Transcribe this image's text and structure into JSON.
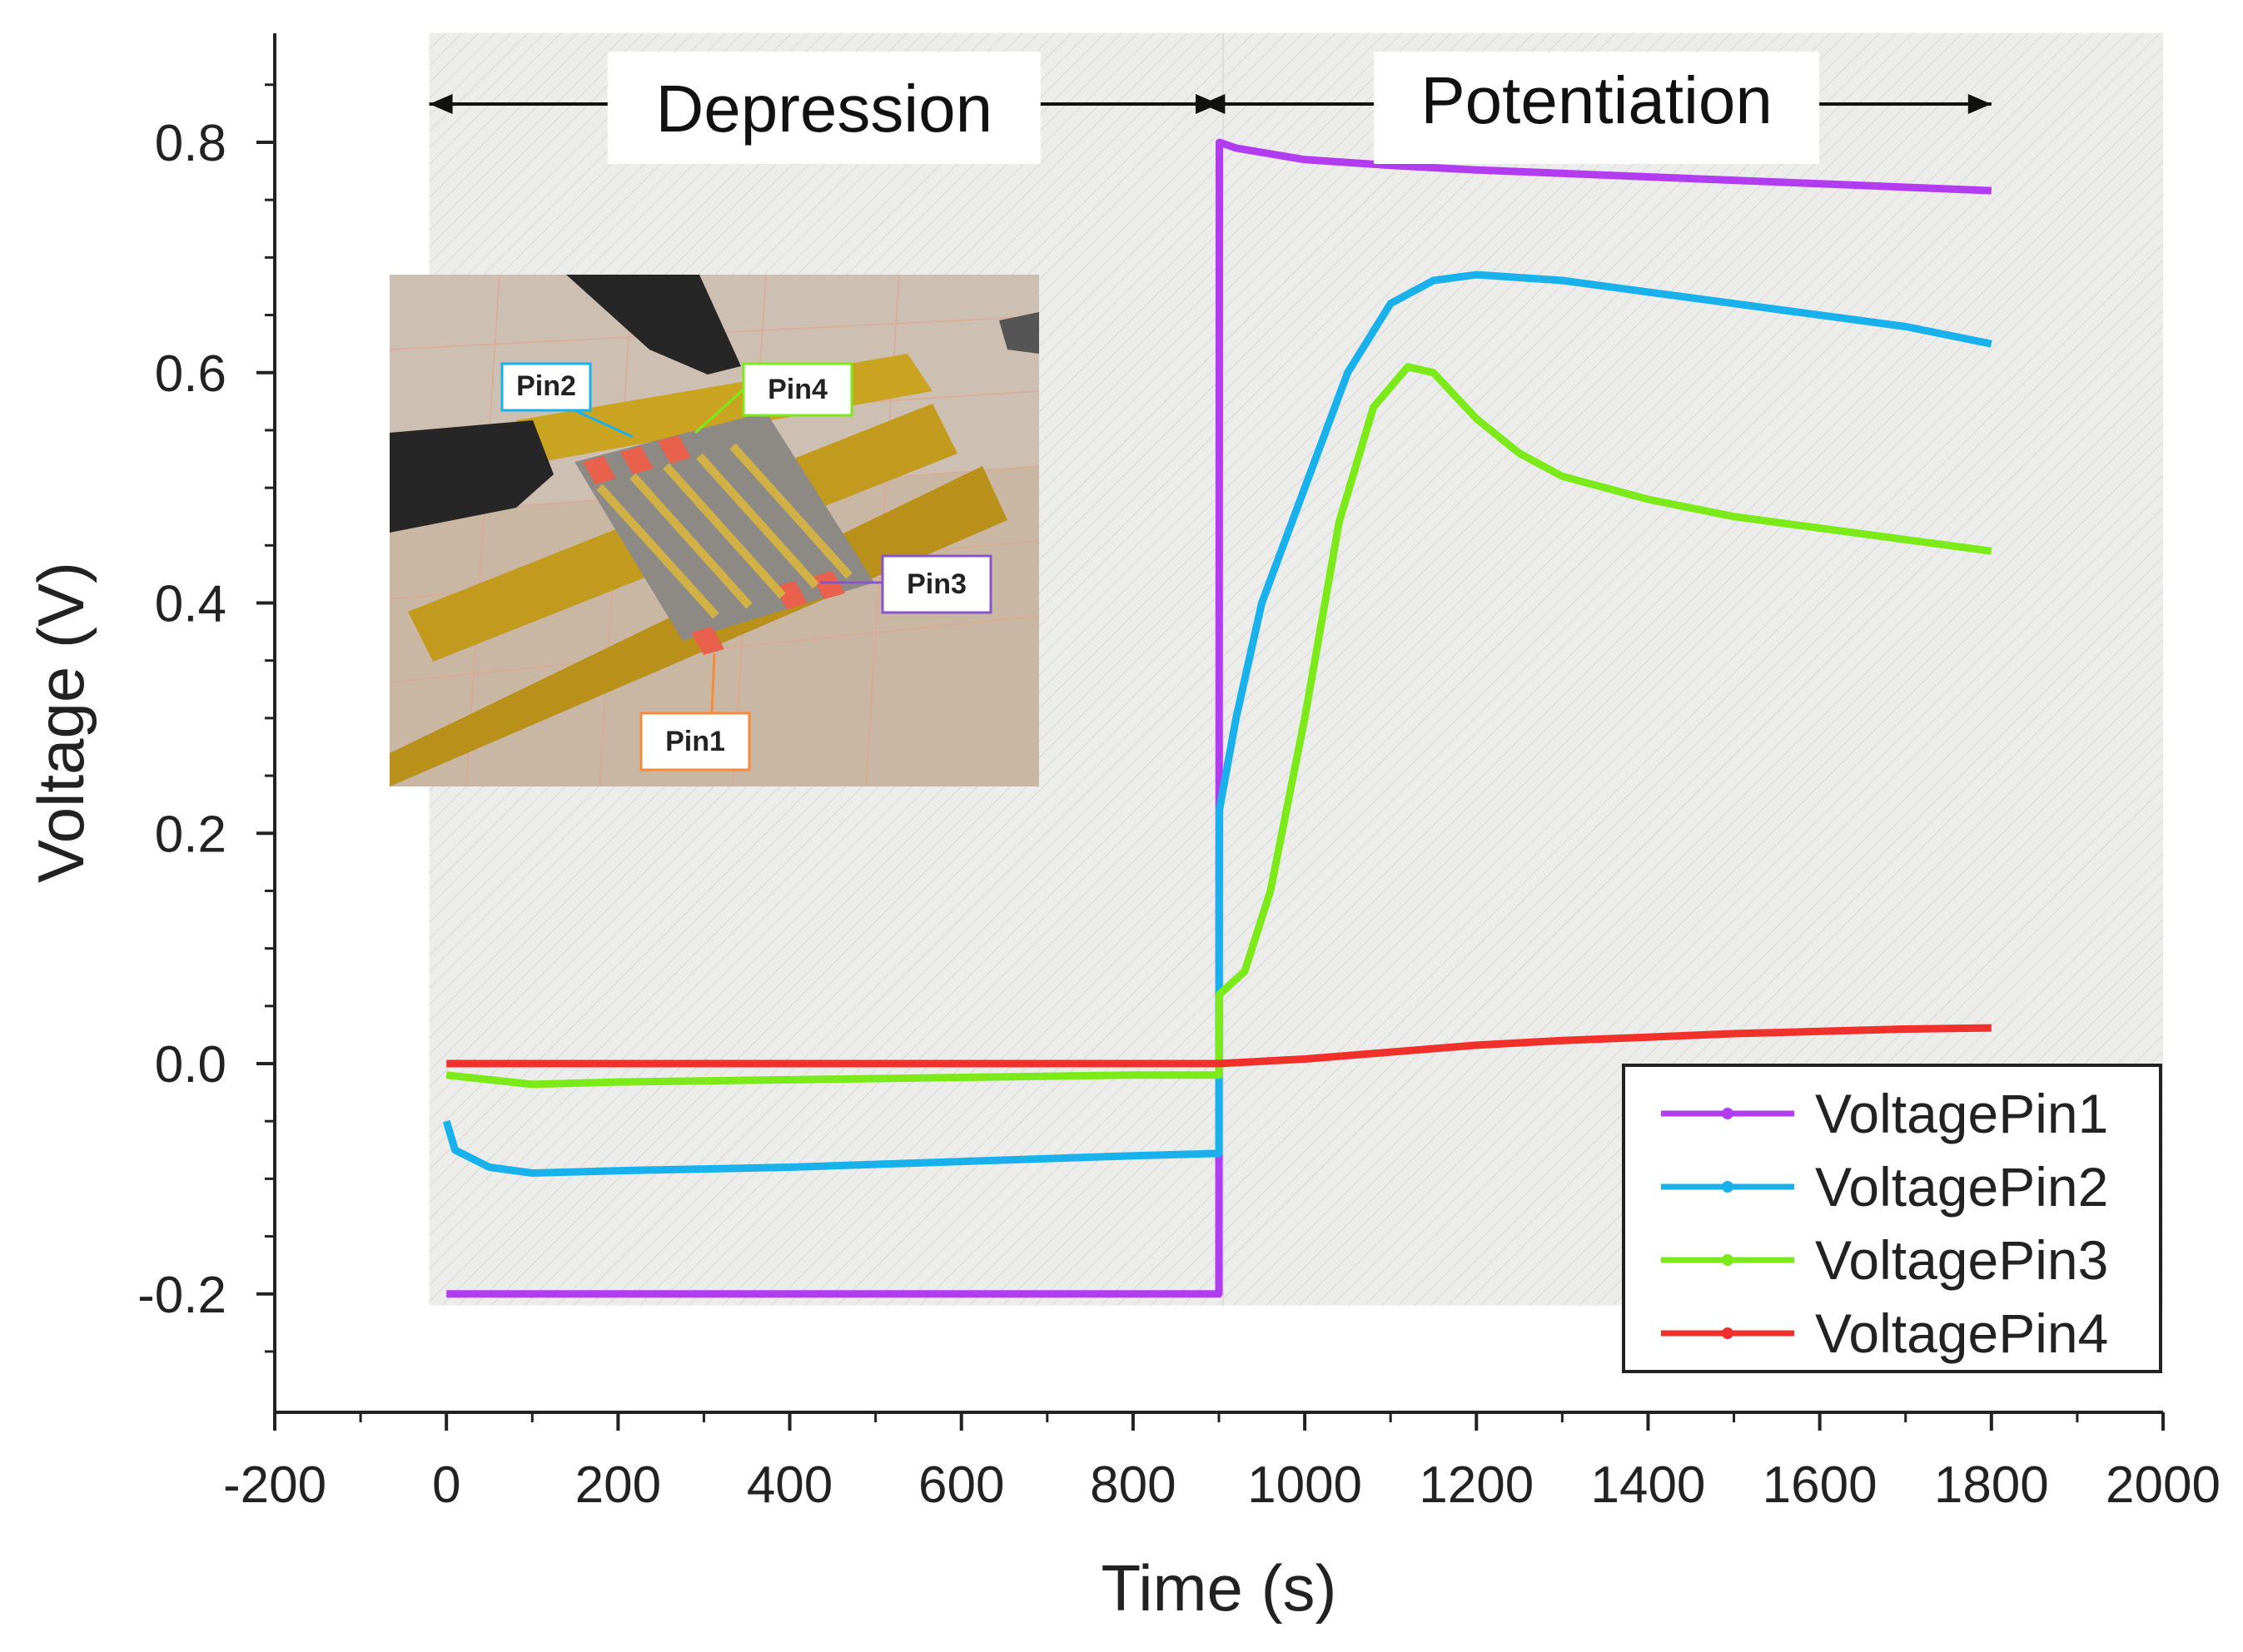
{
  "chart_data": {
    "type": "line",
    "xlabel": "Time (s)",
    "ylabel": "Voltage (V)",
    "xlim": [
      -200,
      2000
    ],
    "ylim": [
      -0.3,
      0.9
    ],
    "xticks": [
      -200,
      0,
      200,
      400,
      600,
      800,
      1000,
      1200,
      1400,
      1600,
      1800,
      2000
    ],
    "yticks": [
      -0.2,
      0.0,
      0.2,
      0.4,
      0.6,
      0.8
    ],
    "ytick_labels": [
      "-0.2",
      "0.0",
      "0.2",
      "0.4",
      "0.6",
      "0.8"
    ],
    "phases": [
      {
        "label": "Depression",
        "x_start": 0,
        "x_end": 900
      },
      {
        "label": "Potentiation",
        "x_start": 900,
        "x_end": 1800
      }
    ],
    "legend_position": "bottom-right",
    "series": [
      {
        "name": "VoltagePin1",
        "color": "#b23cf0",
        "x": [
          0,
          100,
          300,
          500,
          700,
          900,
          900.5,
          920,
          1000,
          1100,
          1200,
          1400,
          1600,
          1800
        ],
        "y": [
          -0.2,
          -0.2,
          -0.2,
          -0.2,
          -0.2,
          -0.2,
          0.8,
          0.795,
          0.785,
          0.78,
          0.776,
          0.77,
          0.764,
          0.758
        ]
      },
      {
        "name": "VoltagePin2",
        "color": "#19b1ec",
        "x": [
          0,
          10,
          50,
          100,
          200,
          400,
          600,
          800,
          900,
          900.5,
          920,
          950,
          1000,
          1050,
          1100,
          1150,
          1200,
          1300,
          1400,
          1500,
          1600,
          1700,
          1800
        ],
        "y": [
          -0.05,
          -0.075,
          -0.09,
          -0.095,
          -0.093,
          -0.09,
          -0.085,
          -0.08,
          -0.078,
          0.22,
          0.3,
          0.4,
          0.5,
          0.6,
          0.66,
          0.68,
          0.685,
          0.68,
          0.67,
          0.66,
          0.65,
          0.64,
          0.625
        ]
      },
      {
        "name": "VoltagePin3",
        "color": "#7bea18",
        "x": [
          0,
          100,
          200,
          400,
          600,
          800,
          900,
          900.5,
          930,
          960,
          1000,
          1040,
          1080,
          1120,
          1150,
          1200,
          1250,
          1300,
          1400,
          1500,
          1600,
          1700,
          1800
        ],
        "y": [
          -0.01,
          -0.018,
          -0.016,
          -0.014,
          -0.012,
          -0.01,
          -0.01,
          0.06,
          0.08,
          0.15,
          0.3,
          0.47,
          0.57,
          0.605,
          0.6,
          0.56,
          0.53,
          0.51,
          0.49,
          0.475,
          0.465,
          0.455,
          0.445
        ]
      },
      {
        "name": "VoltagePin4",
        "color": "#f0302a",
        "x": [
          0,
          200,
          400,
          600,
          800,
          900,
          1000,
          1100,
          1200,
          1300,
          1400,
          1500,
          1600,
          1700,
          1800
        ],
        "y": [
          0.0,
          0.0,
          0.0,
          0.0,
          0.0,
          0.0,
          0.004,
          0.01,
          0.016,
          0.02,
          0.023,
          0.026,
          0.028,
          0.03,
          0.031
        ]
      }
    ]
  },
  "inset": {
    "tags": [
      {
        "label": "Pin2",
        "color": "#19b1ec"
      },
      {
        "label": "Pin4",
        "color": "#7bea18"
      },
      {
        "label": "Pin3",
        "color": "#8a55c8"
      },
      {
        "label": "Pin1",
        "color": "#f58a3a"
      }
    ]
  }
}
